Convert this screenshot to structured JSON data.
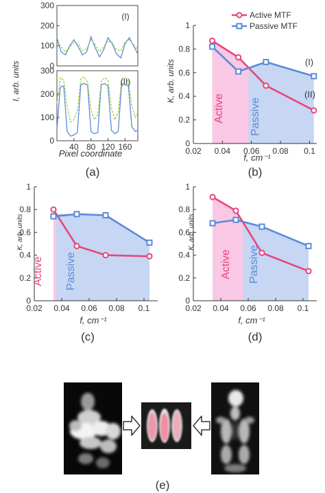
{
  "colors": {
    "active": "#e8457a",
    "passive": "#5b8ad8",
    "active_fill": "#f9c8e4",
    "passive_fill": "#c6d6f3",
    "dashed": "#9ccc3c",
    "axis": "#333333"
  },
  "panel_labels": [
    "(a)",
    "(b)",
    "(c)",
    "(d)",
    "(e)"
  ],
  "chart_data": [
    {
      "type": "line",
      "panel": "(a) top",
      "annotation": "(I)",
      "ylabel": "I, arb. units",
      "xlim": [
        0,
        190
      ],
      "ylim": [
        0,
        300
      ],
      "yticks": [
        0,
        100,
        200,
        300
      ],
      "series": [
        {
          "style": "solid-blue",
          "x": [
            0,
            10,
            20,
            30,
            40,
            50,
            60,
            70,
            80,
            90,
            100,
            110,
            120,
            130,
            140,
            150,
            160,
            170,
            180,
            190
          ],
          "y": [
            140,
            70,
            55,
            100,
            130,
            95,
            55,
            70,
            145,
            90,
            45,
            80,
            140,
            110,
            60,
            40,
            110,
            140,
            100,
            60
          ]
        },
        {
          "style": "dashed-green",
          "x": [
            0,
            10,
            20,
            30,
            40,
            50,
            60,
            70,
            80,
            90,
            100,
            110,
            120,
            130,
            140,
            150,
            160,
            170,
            180,
            190
          ],
          "y": [
            120,
            95,
            70,
            90,
            115,
            110,
            75,
            85,
            130,
            105,
            70,
            95,
            125,
            115,
            80,
            75,
            120,
            130,
            105,
            80
          ]
        }
      ]
    },
    {
      "type": "line",
      "panel": "(a) bottom",
      "annotation": "(II)",
      "xlabel": "Pixel coordinate",
      "xlim": [
        0,
        190
      ],
      "ylim": [
        0,
        300
      ],
      "xticks": [
        40,
        80,
        120,
        160
      ],
      "yticks": [
        0,
        100,
        200,
        300
      ],
      "series": [
        {
          "style": "solid-blue",
          "x": [
            0,
            8,
            16,
            24,
            32,
            40,
            48,
            56,
            64,
            72,
            80,
            88,
            96,
            104,
            112,
            120,
            128,
            136,
            144,
            152,
            160,
            168,
            176,
            184,
            190
          ],
          "y": [
            50,
            230,
            235,
            40,
            20,
            25,
            35,
            240,
            245,
            240,
            40,
            30,
            35,
            240,
            245,
            235,
            45,
            30,
            40,
            245,
            240,
            235,
            60,
            40,
            45
          ]
        },
        {
          "style": "dashed-green",
          "x": [
            0,
            8,
            16,
            24,
            32,
            40,
            48,
            56,
            64,
            72,
            80,
            88,
            96,
            104,
            112,
            120,
            128,
            136,
            144,
            152,
            160,
            168,
            176,
            184,
            190
          ],
          "y": [
            160,
            270,
            260,
            150,
            80,
            90,
            130,
            265,
            275,
            250,
            130,
            90,
            110,
            255,
            270,
            260,
            140,
            90,
            120,
            265,
            270,
            255,
            150,
            100,
            120
          ]
        }
      ]
    },
    {
      "type": "line",
      "panel": "(b)",
      "ylabel": "K, arb. units",
      "xlabel": "f, cm⁻¹",
      "xlim": [
        0.02,
        0.105
      ],
      "ylim": [
        0,
        1
      ],
      "xticks": [
        0.02,
        0.04,
        0.06,
        0.08,
        0.1
      ],
      "yticks": [
        0,
        0.2,
        0.4,
        0.6,
        0.8,
        1
      ],
      "legend": [
        "Active MTF",
        "Passive MTF"
      ],
      "region_labels": [
        "Active",
        "Passive"
      ],
      "curve_labels": [
        "(I)",
        "(II)"
      ],
      "crossover": 0.058,
      "series": [
        {
          "name": "Active MTF",
          "x": [
            0.033,
            0.051,
            0.07,
            0.103
          ],
          "y": [
            0.87,
            0.73,
            0.49,
            0.28
          ]
        },
        {
          "name": "Passive MTF",
          "x": [
            0.033,
            0.051,
            0.07,
            0.103
          ],
          "y": [
            0.82,
            0.61,
            0.69,
            0.57
          ]
        }
      ]
    },
    {
      "type": "line",
      "panel": "(c)",
      "ylabel": "K, arb. units",
      "xlabel": "f, cm⁻¹",
      "xlim": [
        0.02,
        0.11
      ],
      "ylim": [
        0,
        1
      ],
      "xticks": [
        0.02,
        0.04,
        0.06,
        0.08,
        0.1
      ],
      "yticks": [
        0,
        0.2,
        0.4,
        0.6,
        0.8,
        1
      ],
      "region_labels": [
        "Active",
        "Passive"
      ],
      "crossover": 0.036,
      "series": [
        {
          "name": "Active MTF",
          "x": [
            0.034,
            0.051,
            0.072,
            0.104
          ],
          "y": [
            0.8,
            0.48,
            0.4,
            0.39
          ]
        },
        {
          "name": "Passive MTF",
          "x": [
            0.034,
            0.051,
            0.072,
            0.104
          ],
          "y": [
            0.74,
            0.76,
            0.75,
            0.51
          ]
        }
      ]
    },
    {
      "type": "line",
      "panel": "(d)",
      "ylabel": "K, arb. units",
      "xlabel": "f, cm⁻¹",
      "xlim": [
        0.02,
        0.11
      ],
      "ylim": [
        0,
        1
      ],
      "xticks": [
        0.02,
        0.04,
        0.06,
        0.08,
        0.1
      ],
      "yticks": [
        0,
        0.2,
        0.4,
        0.6,
        0.8,
        1
      ],
      "region_labels": [
        "Active",
        "Passive"
      ],
      "crossover": 0.056,
      "series": [
        {
          "name": "Active MTF",
          "x": [
            0.034,
            0.051,
            0.07,
            0.104
          ],
          "y": [
            0.91,
            0.79,
            0.42,
            0.26
          ]
        },
        {
          "name": "Passive MTF",
          "x": [
            0.034,
            0.051,
            0.07,
            0.104
          ],
          "y": [
            0.68,
            0.71,
            0.65,
            0.48
          ]
        }
      ]
    }
  ]
}
